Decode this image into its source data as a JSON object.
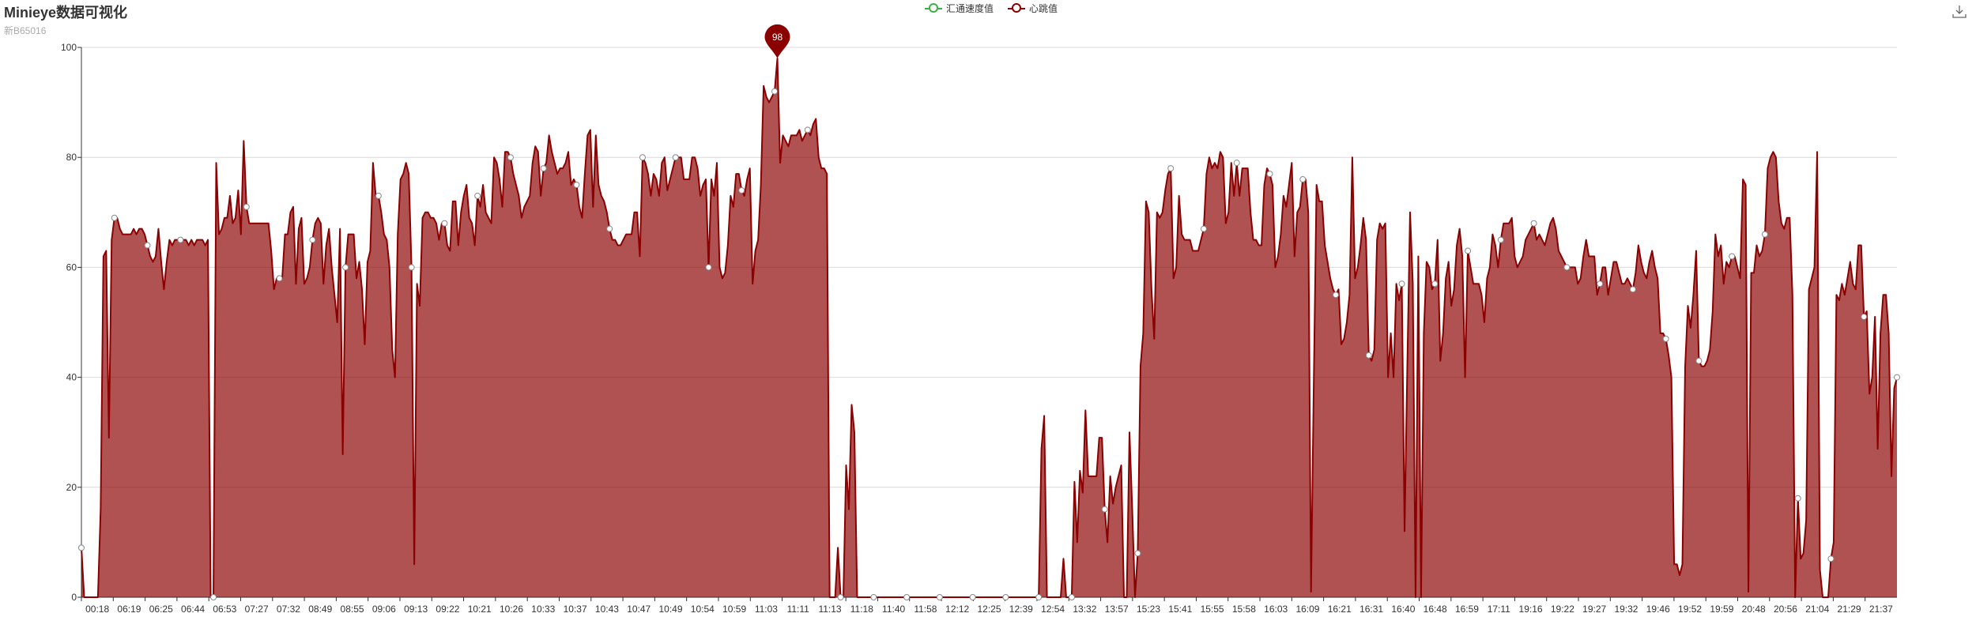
{
  "title": "Minieye数据可视化",
  "subtitle": "新B65016",
  "legend": [
    {
      "name": "汇通速度值",
      "color": "#3cb043"
    },
    {
      "name": "心跳值",
      "color": "#8b0000"
    }
  ],
  "icons": {
    "download": "download-icon"
  },
  "chart_data": {
    "type": "area",
    "title": "Minieye数据可视化",
    "subtitle": "新B65016",
    "ylim": [
      0,
      100
    ],
    "yticks": [
      0,
      20,
      40,
      60,
      80,
      100
    ],
    "grid": true,
    "legend_position": "top-center",
    "x_tick_labels": [
      "00:18",
      "06:19",
      "06:25",
      "06:44",
      "06:53",
      "07:27",
      "07:32",
      "08:49",
      "08:55",
      "09:06",
      "09:13",
      "09:22",
      "10:21",
      "10:26",
      "10:33",
      "10:37",
      "10:43",
      "10:47",
      "10:49",
      "10:54",
      "10:59",
      "11:03",
      "11:11",
      "11:13",
      "11:18",
      "11:40",
      "11:58",
      "12:12",
      "12:25",
      "12:39",
      "12:54",
      "13:32",
      "13:57",
      "15:23",
      "15:41",
      "15:55",
      "15:58",
      "16:03",
      "16:09",
      "16:21",
      "16:31",
      "16:40",
      "16:48",
      "16:59",
      "17:11",
      "19:16",
      "19:22",
      "19:27",
      "19:32",
      "19:46",
      "19:52",
      "19:59",
      "20:48",
      "20:56",
      "21:04",
      "21:29",
      "21:37"
    ],
    "series": [
      {
        "name": "汇通速度值",
        "color": "#3cb043",
        "values": []
      },
      {
        "name": "心跳值",
        "color": "#8b0000",
        "max_marker": {
          "label": "98",
          "value": 98
        },
        "values": [
          9,
          0,
          0,
          0,
          0,
          0,
          0,
          16,
          62,
          63,
          29,
          65,
          69,
          69,
          67,
          66,
          66,
          66,
          66,
          67,
          66,
          67,
          67,
          66,
          64,
          62,
          61,
          62,
          67,
          61,
          56,
          61,
          65,
          64,
          65,
          65,
          65,
          65,
          65,
          64,
          65,
          64,
          65,
          65,
          65,
          64,
          65,
          0,
          0,
          79,
          66,
          67,
          69,
          69,
          73,
          68,
          69,
          74,
          66,
          83,
          71,
          68,
          68,
          68,
          68,
          68,
          68,
          68,
          68,
          63,
          56,
          58,
          58,
          58,
          66,
          66,
          70,
          71,
          57,
          67,
          69,
          57,
          58,
          60,
          65,
          68,
          69,
          68,
          57,
          64,
          67,
          60,
          55,
          50,
          67,
          26,
          60,
          66,
          66,
          66,
          58,
          61,
          56,
          46,
          61,
          63,
          79,
          73,
          73,
          70,
          66,
          65,
          60,
          45,
          40,
          66,
          76,
          77,
          79,
          77,
          60,
          6,
          57,
          53,
          69,
          70,
          70,
          69,
          69,
          68,
          65,
          68,
          68,
          64,
          63,
          72,
          72,
          64,
          70,
          73,
          75,
          69,
          68,
          64,
          73,
          71,
          75,
          70,
          69,
          68,
          80,
          79,
          76,
          71,
          81,
          81,
          80,
          77,
          75,
          73,
          69,
          71,
          72,
          73,
          79,
          82,
          81,
          73,
          78,
          79,
          84,
          81,
          79,
          77,
          78,
          78,
          79,
          81,
          75,
          76,
          75,
          71,
          69,
          77,
          84,
          85,
          71,
          84,
          75,
          73,
          72,
          70,
          67,
          65,
          65,
          64,
          64,
          65,
          66,
          66,
          66,
          70,
          70,
          62,
          80,
          79,
          77,
          73,
          77,
          76,
          73,
          79,
          80,
          74,
          76,
          78,
          80,
          80,
          80,
          76,
          76,
          76,
          80,
          80,
          78,
          73,
          75,
          76,
          60,
          76,
          73,
          79,
          60,
          58,
          59,
          64,
          73,
          71,
          77,
          77,
          74,
          73,
          76,
          78,
          57,
          63,
          65,
          75,
          93,
          91,
          90,
          91,
          92,
          98,
          79,
          84,
          83,
          82,
          84,
          84,
          84,
          85,
          83,
          84,
          85,
          84,
          86,
          87,
          80,
          78,
          78,
          77,
          0,
          0,
          0,
          9,
          0,
          0,
          24,
          16,
          35,
          30,
          0,
          0,
          0,
          0,
          0,
          0,
          0,
          0,
          0,
          0,
          0,
          0,
          0,
          0,
          0,
          0,
          0,
          0,
          0,
          0,
          0,
          0,
          0,
          0,
          0,
          0,
          0,
          0,
          0,
          0,
          0,
          0,
          0,
          0,
          0,
          0,
          0,
          0,
          0,
          0,
          0,
          0,
          0,
          0,
          0,
          0,
          0,
          0,
          0,
          0,
          0,
          0,
          0,
          0,
          0,
          0,
          0,
          0,
          0,
          0,
          0,
          0,
          0,
          0,
          0,
          0,
          0,
          27,
          33,
          0,
          0,
          0,
          0,
          0,
          0,
          7,
          0,
          0,
          0,
          21,
          10,
          23,
          19,
          34,
          22,
          22,
          22,
          22,
          29,
          29,
          16,
          10,
          22,
          17,
          20,
          22,
          24,
          0,
          0,
          30,
          16,
          0,
          8,
          42,
          48,
          72,
          70,
          56,
          47,
          70,
          69,
          70,
          74,
          77,
          78,
          58,
          60,
          73,
          66,
          65,
          65,
          65,
          63,
          63,
          63,
          65,
          67,
          77,
          80,
          78,
          79,
          78,
          81,
          80,
          68,
          70,
          79,
          73,
          79,
          73,
          78,
          78,
          78,
          70,
          65,
          65,
          64,
          64,
          75,
          78,
          77,
          75,
          60,
          62,
          66,
          73,
          71,
          75,
          79,
          62,
          70,
          71,
          76,
          76,
          70,
          1,
          39,
          75,
          72,
          72,
          64,
          61,
          58,
          56,
          55,
          56,
          46,
          47,
          50,
          55,
          80,
          58,
          60,
          64,
          69,
          65,
          44,
          43,
          45,
          65,
          68,
          67,
          68,
          40,
          48,
          40,
          57,
          54,
          57,
          12,
          42,
          70,
          57,
          0,
          62,
          0,
          48,
          61,
          60,
          56,
          57,
          65,
          43,
          48,
          58,
          61,
          53,
          56,
          64,
          67,
          62,
          40,
          63,
          60,
          57,
          57,
          57,
          55,
          50,
          58,
          60,
          66,
          64,
          60,
          65,
          68,
          68,
          68,
          69,
          62,
          60,
          61,
          62,
          65,
          66,
          67,
          68,
          65,
          66,
          65,
          64,
          66,
          68,
          69,
          67,
          63,
          62,
          61,
          60,
          60,
          60,
          60,
          57,
          58,
          62,
          65,
          62,
          62,
          62,
          55,
          57,
          60,
          60,
          55,
          58,
          61,
          61,
          59,
          57,
          57,
          58,
          57,
          56,
          59,
          64,
          61,
          59,
          58,
          61,
          63,
          60,
          58,
          48,
          48,
          47,
          44,
          40,
          6,
          6,
          4,
          6,
          42,
          53,
          49,
          55,
          63,
          43,
          42,
          42,
          43,
          45,
          52,
          66,
          62,
          64,
          57,
          61,
          60,
          62,
          62,
          60,
          58,
          76,
          75,
          1,
          59,
          59,
          64,
          62,
          63,
          66,
          78,
          80,
          81,
          80,
          72,
          68,
          67,
          69,
          69,
          55,
          0,
          18,
          7,
          8,
          14,
          56,
          58,
          60,
          81,
          5,
          0,
          0,
          0,
          7,
          10,
          55,
          54,
          57,
          55,
          58,
          61,
          57,
          56,
          64,
          64,
          51,
          52,
          37,
          40,
          51,
          27,
          48,
          55,
          55,
          48,
          22,
          38,
          40
        ]
      }
    ]
  }
}
